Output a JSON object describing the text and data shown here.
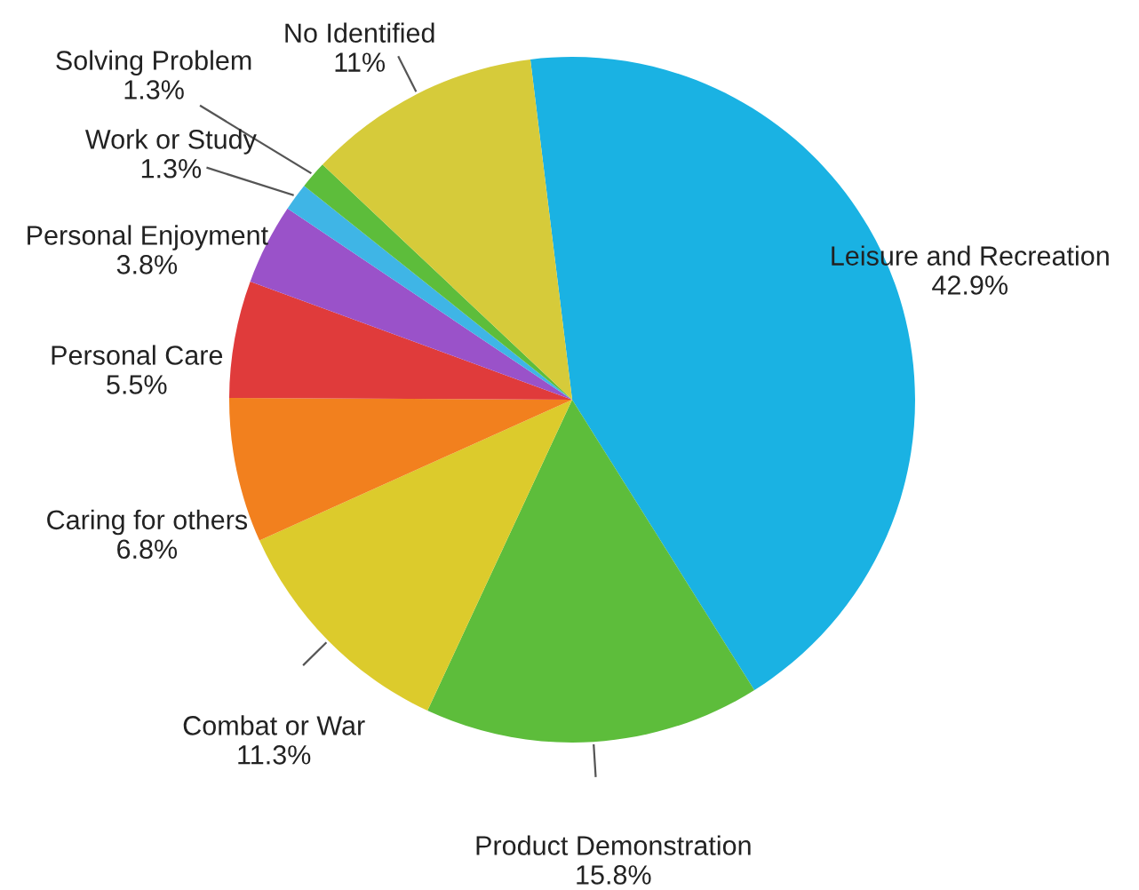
{
  "chart_data": {
    "type": "pie",
    "categories": [
      "Leisure and Recreation",
      "Product Demonstration",
      "Combat or War",
      "Caring for others",
      "Personal Care",
      "Personal Enjoyment",
      "Work or Study",
      "Solving Problem",
      "No Identified"
    ],
    "values": [
      42.9,
      15.8,
      11.3,
      6.8,
      5.5,
      3.8,
      1.3,
      1.3,
      11
    ],
    "colors": [
      "#1ab2e3",
      "#5dbd3b",
      "#dccb2c",
      "#f2801e",
      "#e03b3b",
      "#9a52c9",
      "#3fb5e6",
      "#5dbd3b",
      "#d6cb3a"
    ],
    "value_labels": [
      "42.9%",
      "15.8%",
      "11.3%",
      "6.8%",
      "5.5%",
      "3.8%",
      "1.3%",
      "1.3%",
      "11%"
    ],
    "legend": false
  }
}
